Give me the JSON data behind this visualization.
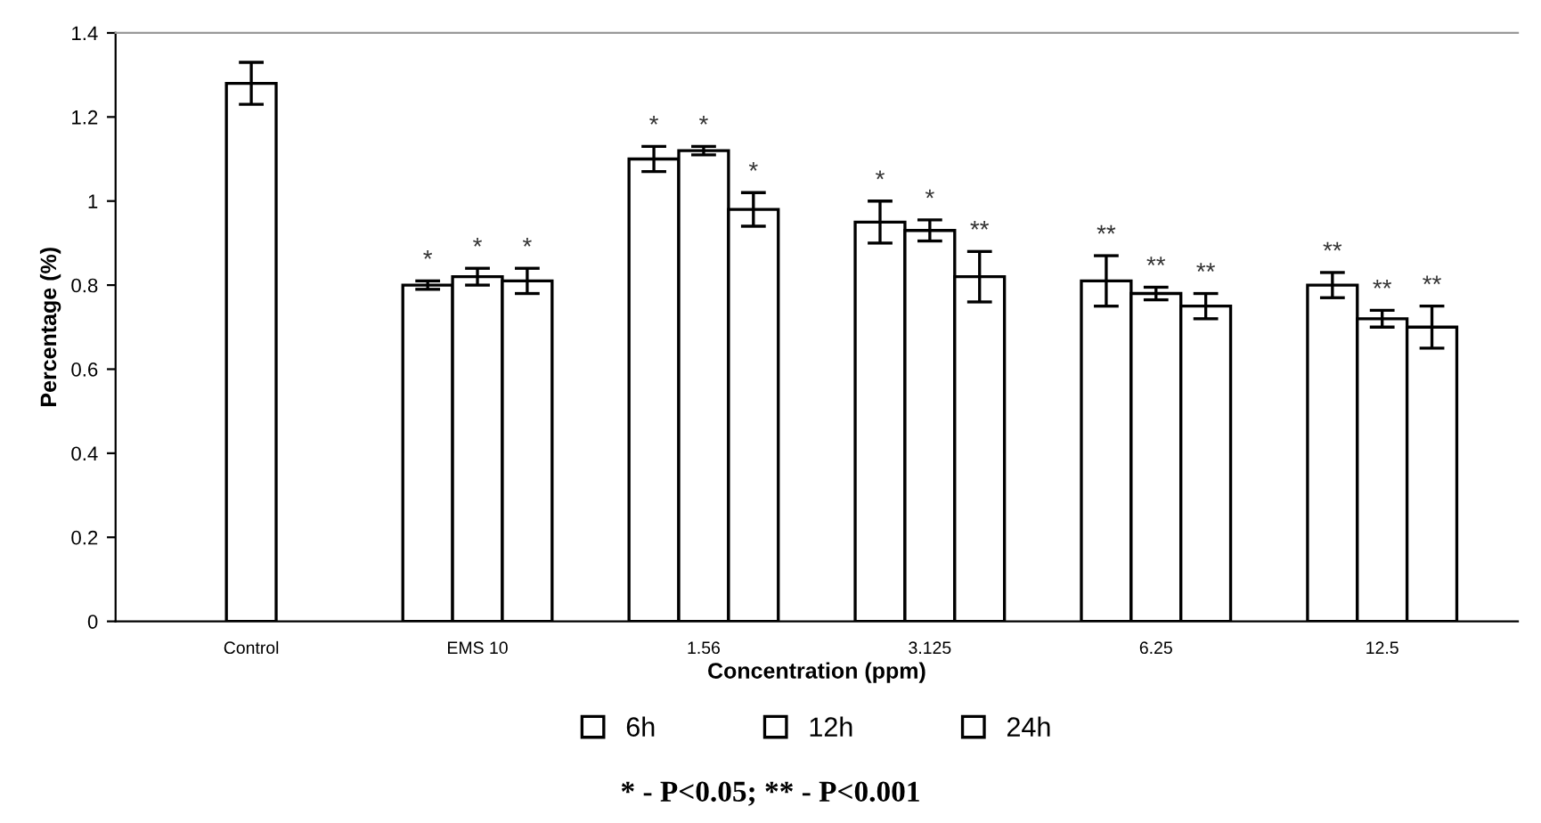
{
  "chart_data": {
    "type": "bar",
    "xlabel": "Concentration (ppm)",
    "ylabel": "Percentage (%)",
    "categories": [
      "Control",
      "EMS 10",
      "1.56",
      "3.125",
      "6.25",
      "12.5"
    ],
    "series": [
      {
        "name": "6h",
        "color": "#ffffff",
        "values": [
          null,
          0.8,
          1.1,
          0.95,
          0.81,
          0.8
        ],
        "errors": [
          null,
          0.01,
          0.03,
          0.05,
          0.06,
          0.03
        ],
        "value_labels": [
          null,
          "*",
          "*",
          "*",
          "**",
          "**"
        ]
      },
      {
        "name": "12h",
        "color": "#ffffff",
        "values": [
          1.28,
          0.82,
          1.12,
          0.93,
          0.78,
          0.72
        ],
        "errors": [
          0.05,
          0.02,
          0.01,
          0.025,
          0.015,
          0.02
        ],
        "value_labels": [
          null,
          "*",
          "*",
          "*",
          "**",
          "**"
        ]
      },
      {
        "name": "24h",
        "color": "#ffffff",
        "values": [
          null,
          0.81,
          0.98,
          0.82,
          0.75,
          0.7
        ],
        "errors": [
          null,
          0.03,
          0.04,
          0.06,
          0.03,
          0.05
        ],
        "value_labels": [
          null,
          "*",
          "*",
          "**",
          "**",
          "**"
        ]
      }
    ],
    "ylim": [
      0,
      1.4
    ],
    "yticks": [
      {
        "value": 0,
        "label": "0"
      },
      0.2,
      0.4,
      0.6,
      0.8,
      {
        "value": 1,
        "label": "1"
      },
      1.2,
      1.4
    ],
    "grid": false,
    "legend": "bottom",
    "annotations": [
      "* - P<0.05; ** - P<0.001"
    ]
  }
}
